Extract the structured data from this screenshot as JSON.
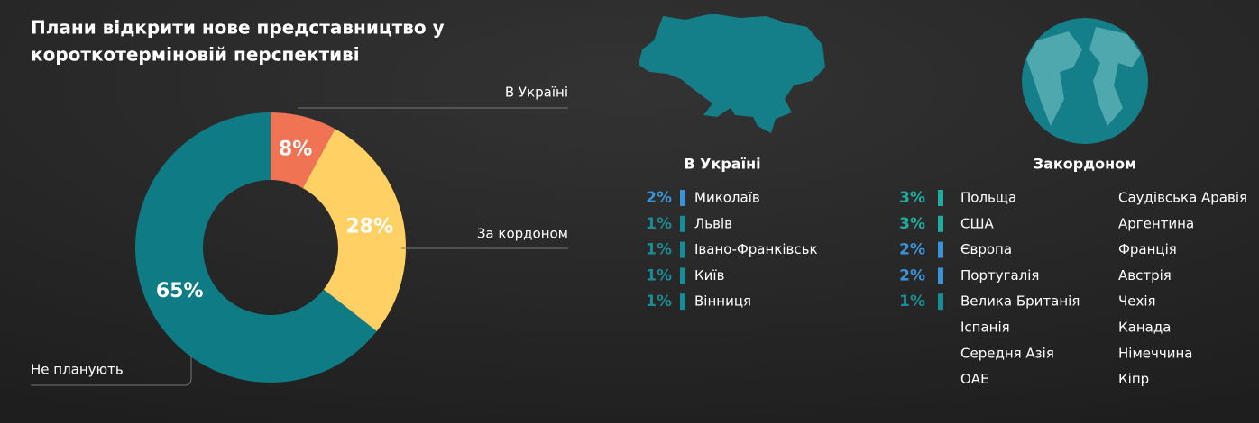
{
  "chart_data": {
    "type": "donut",
    "title": "Плани відкрити нове представництво у короткотерміновій перспективі",
    "title_lines": [
      "Плани відкрити нове представництво у",
      "короткотерміновій перспективі"
    ],
    "categories": [
      "В Україні",
      "За кордоном",
      "Не планують"
    ],
    "values": [
      8,
      28,
      65
    ],
    "value_labels": [
      "8%",
      "28%",
      "65%"
    ],
    "colors": [
      "#f07353",
      "#ffd064",
      "#0e7b85"
    ]
  },
  "ukraine": {
    "title": "В Україні",
    "items": [
      {
        "pct": "2%",
        "name": "Миколаїв",
        "color": "#3b93d6"
      },
      {
        "pct": "1%",
        "name": "Львів",
        "color": "#1a8c96"
      },
      {
        "pct": "1%",
        "name": "Івано-Франківськ",
        "color": "#1a8c96"
      },
      {
        "pct": "1%",
        "name": "Київ",
        "color": "#1a8c96"
      },
      {
        "pct": "1%",
        "name": "Вінниця",
        "color": "#1a8c96"
      }
    ]
  },
  "abroad": {
    "title": "Закордоном",
    "items": [
      {
        "pct": "3%",
        "name": "Польща",
        "color": "#1fae9d"
      },
      {
        "pct": "3%",
        "name": "США",
        "color": "#1fae9d"
      },
      {
        "pct": "2%",
        "name": "Європа",
        "color": "#3b93d6"
      },
      {
        "pct": "2%",
        "name": "Португалія",
        "color": "#3b93d6"
      },
      {
        "pct": "1%",
        "name": "Велика Британія",
        "color": "#1a8c96"
      }
    ],
    "others_col1": [
      "Іспанія",
      "Середня Азія",
      "ОАЕ"
    ],
    "others_col2": [
      "Саудівська Аравія",
      "Аргентина",
      "Франція",
      "Австрія",
      "Чехія",
      "Канада",
      "Німеччина",
      "Кіпр"
    ]
  }
}
